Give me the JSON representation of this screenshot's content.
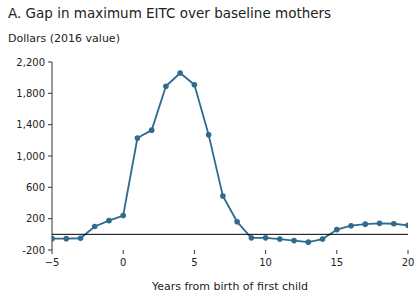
{
  "chart_data": {
    "type": "line",
    "title": "A. Gap in maximum EITC over baseline mothers",
    "y_label": "Dollars (2016 value)",
    "x_label": "Years from birth of first child",
    "color": "#2e6b8e",
    "marker": "circle",
    "x": [
      -5,
      -4,
      -3,
      -2,
      -1,
      0,
      1,
      2,
      3,
      4,
      5,
      6,
      7,
      8,
      9,
      10,
      11,
      12,
      13,
      14,
      15,
      16,
      17,
      18,
      19,
      20
    ],
    "values": [
      -55,
      -55,
      -50,
      100,
      175,
      240,
      1230,
      1330,
      1890,
      2060,
      1910,
      1270,
      490,
      160,
      -45,
      -45,
      -60,
      -80,
      -100,
      -60,
      60,
      110,
      130,
      140,
      135,
      115
    ],
    "hline": 0,
    "xlim": [
      -5,
      20
    ],
    "ylim": [
      -200,
      2200
    ],
    "xticks": [
      {
        "value": -5,
        "label": "−5"
      },
      0,
      5,
      10,
      15,
      20
    ],
    "yticks": [
      -200,
      200,
      600,
      {
        "value": 1000,
        "label": "1,000"
      },
      {
        "value": 1400,
        "label": "1,400"
      },
      {
        "value": 1800,
        "label": "1,800"
      },
      {
        "value": 2200,
        "label": "2,200"
      }
    ]
  }
}
